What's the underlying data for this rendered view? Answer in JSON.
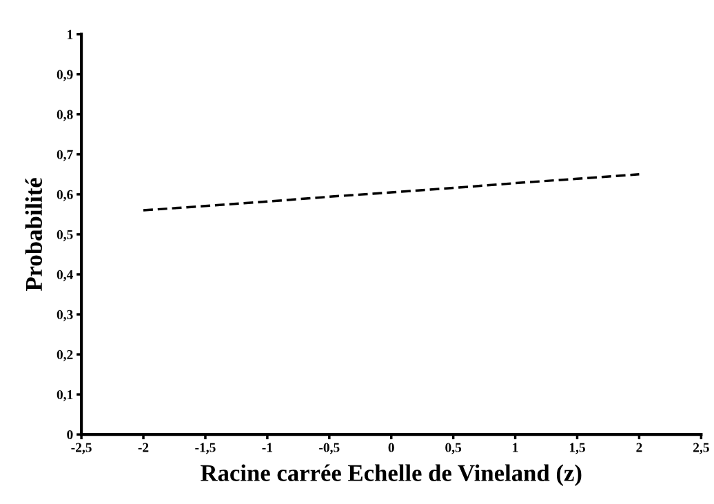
{
  "chart_data": {
    "type": "line",
    "xlabel": "Racine carrée Echelle de Vineland (z)",
    "ylabel": "Probabilité",
    "x": [
      -2,
      -1.5,
      -1,
      -0.5,
      0,
      0.5,
      1,
      1.5,
      2
    ],
    "series": [
      {
        "color": "#000000",
        "values": [
          0.56,
          0.571,
          0.582,
          0.594,
          0.605,
          0.616,
          0.628,
          0.639,
          0.65
        ]
      }
    ],
    "xlim": [
      -2.5,
      2.5
    ],
    "xticks": [
      {
        "value": -2.5,
        "label": "-2,5"
      },
      -2,
      {
        "value": -1.5,
        "label": "-1,5"
      },
      -1,
      {
        "value": -0.5,
        "label": "-0,5"
      },
      0,
      {
        "value": 0.5,
        "label": "0,5"
      },
      1,
      {
        "value": 1.5,
        "label": "1,5"
      },
      2,
      {
        "value": 2.5,
        "label": "2,5"
      }
    ],
    "ylim": [
      0,
      1
    ],
    "yticks": [
      0,
      {
        "value": 0.1,
        "label": "0,1"
      },
      {
        "value": 0.2,
        "label": "0,2"
      },
      {
        "value": 0.3,
        "label": "0,3"
      },
      {
        "value": 0.4,
        "label": "0,4"
      },
      {
        "value": 0.5,
        "label": "0,5"
      },
      {
        "value": 0.6,
        "label": "0,6"
      },
      {
        "value": 0.7,
        "label": "0,7"
      },
      {
        "value": 0.8,
        "label": "0,8"
      },
      {
        "value": 0.9,
        "label": "0,9"
      },
      1
    ],
    "marker": "none",
    "line_style": "dashed"
  }
}
